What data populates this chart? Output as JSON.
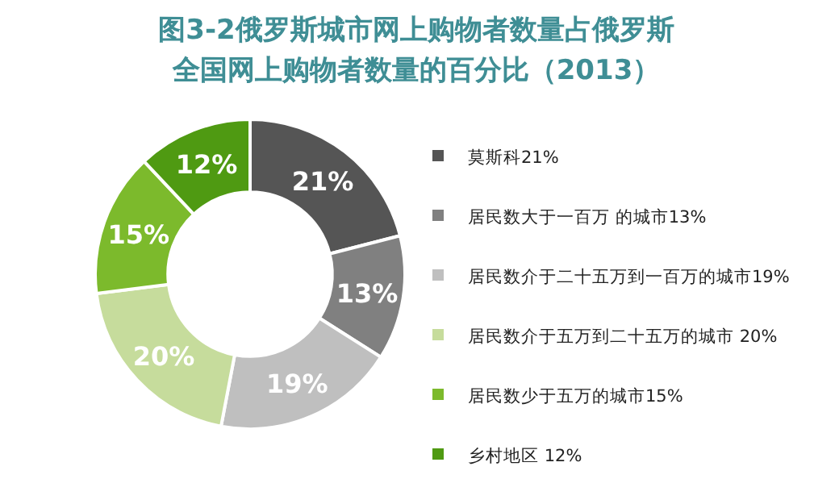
{
  "chart_data": {
    "type": "donut",
    "title": "图3-2俄罗斯城市网上购物者数量占俄罗斯全国网上购物者数量的百分比（2013）",
    "categories": [
      "莫斯科21%",
      "居民数大于一百万 的城市13%",
      "居民数介于二十五万到一百万的城市19%",
      "居民数介于五万到二十五万的城市 20%",
      "居民数少于五万的城市15%",
      "乡村地区 12%"
    ],
    "values": [
      21,
      13,
      19,
      20,
      15,
      12
    ],
    "colors": [
      "#555555",
      "#808080",
      "#bfbfbf",
      "#c6dc9c",
      "#7cba2c",
      "#4f9a12"
    ],
    "value_labels": [
      "21%",
      "13%",
      "19%",
      "20%",
      "15%",
      "12%"
    ],
    "legend": "right"
  }
}
